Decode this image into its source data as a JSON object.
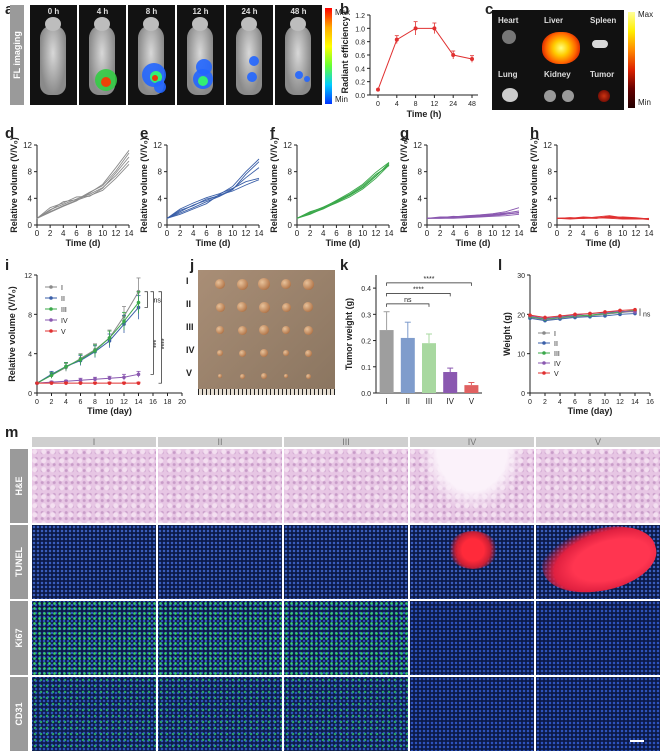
{
  "panel_labels": {
    "a": "a",
    "b": "b",
    "c": "c",
    "d": "d",
    "e": "e",
    "f": "f",
    "g": "g",
    "h": "h",
    "i": "i",
    "j": "j",
    "k": "k",
    "l": "l",
    "m": "m"
  },
  "panel_a": {
    "row_label": "FL imaging",
    "timepoints": [
      "0 h",
      "4 h",
      "8 h",
      "12 h",
      "24 h",
      "48 h"
    ],
    "colorbar_max": "Max",
    "colorbar_min": "Min"
  },
  "panel_c": {
    "organs": [
      "Heart",
      "Liver",
      "Spleen",
      "Lung",
      "Kidney",
      "Tumor"
    ],
    "colorbar_max": "Max",
    "colorbar_min": "Min"
  },
  "panel_j": {
    "groups": [
      "I",
      "II",
      "III",
      "IV",
      "V"
    ]
  },
  "panel_m": {
    "columns": [
      "I",
      "II",
      "III",
      "IV",
      "V"
    ],
    "rows": [
      "H&E",
      "TUNEL",
      "Ki67",
      "CD31"
    ]
  },
  "chart_data": [
    {
      "id": "b",
      "type": "line",
      "title": "",
      "xlabel": "Time (h)",
      "ylabel": "Radiant efficiency",
      "x": [
        0,
        4,
        8,
        12,
        24,
        48
      ],
      "x_display": [
        0,
        4,
        8,
        12,
        24,
        48
      ],
      "values": [
        0.08,
        0.83,
        1.0,
        1.0,
        0.6,
        0.54
      ],
      "errors": [
        0,
        0.06,
        0.1,
        0.08,
        0.06,
        0.05
      ],
      "ylim": [
        0,
        1.2
      ],
      "yticks": [
        "0.0",
        "0.2",
        "0.4",
        "0.6",
        "0.8",
        "1.0",
        "1.2"
      ],
      "color": "#e03030"
    },
    {
      "id": "d",
      "type": "line",
      "xlabel": "Time (d)",
      "ylabel": "Relative volume (V/V₀)",
      "xlim": [
        0,
        14
      ],
      "ylim": [
        0,
        12
      ],
      "xticks": [
        "0",
        "2",
        "4",
        "6",
        "8",
        "10",
        "12",
        "14"
      ],
      "yticks": [
        "0",
        "4",
        "8",
        "12"
      ],
      "color": "#8a8a8a",
      "x": [
        0,
        2,
        4,
        6,
        8,
        10,
        12,
        14
      ],
      "series": [
        {
          "values": [
            1,
            2.3,
            3.1,
            3.9,
            4.6,
            5.6,
            7.4,
            9.6
          ]
        },
        {
          "values": [
            1,
            1.9,
            2.8,
            3.6,
            4.8,
            6.1,
            8.6,
            11.2
          ]
        },
        {
          "values": [
            1,
            2.6,
            3.3,
            4.2,
            4.3,
            5.5,
            7.8,
            10.2
          ]
        },
        {
          "values": [
            1,
            2.0,
            2.9,
            3.7,
            4.4,
            5.2,
            7.0,
            9.1
          ]
        },
        {
          "values": [
            1,
            2.2,
            3.5,
            3.8,
            4.9,
            5.9,
            8.1,
            10.8
          ]
        }
      ]
    },
    {
      "id": "e",
      "type": "line",
      "xlabel": "Time (d)",
      "ylabel": "Relative volume (V/V₀)",
      "xlim": [
        0,
        14
      ],
      "ylim": [
        0,
        12
      ],
      "xticks": [
        "0",
        "2",
        "4",
        "6",
        "8",
        "10",
        "12",
        "14"
      ],
      "yticks": [
        "0",
        "4",
        "8",
        "12"
      ],
      "color": "#3a5fa8",
      "x": [
        0,
        2,
        4,
        6,
        8,
        10,
        12,
        14
      ],
      "series": [
        {
          "values": [
            1,
            1.8,
            2.6,
            3.5,
            4.3,
            5.3,
            7.6,
            9.5
          ]
        },
        {
          "values": [
            1,
            2.4,
            3.3,
            4.1,
            4.7,
            5.5,
            6.5,
            7.0
          ]
        },
        {
          "values": [
            1,
            1.6,
            2.4,
            3.2,
            4.6,
            5.8,
            8.0,
            9.9
          ]
        },
        {
          "values": [
            1,
            2.0,
            3.0,
            3.7,
            4.5,
            5.1,
            6.0,
            6.8
          ]
        },
        {
          "values": [
            1,
            2.2,
            2.9,
            3.9,
            4.4,
            5.4,
            7.1,
            8.6
          ]
        }
      ]
    },
    {
      "id": "f",
      "type": "line",
      "xlabel": "Time (d)",
      "ylabel": "Relative volume (V/V₀)",
      "xlim": [
        0,
        14
      ],
      "ylim": [
        0,
        12
      ],
      "xticks": [
        "0",
        "2",
        "4",
        "6",
        "8",
        "10",
        "12",
        "14"
      ],
      "yticks": [
        "0",
        "4",
        "8",
        "12"
      ],
      "color": "#3aa84a",
      "x": [
        0,
        2,
        4,
        6,
        8,
        10,
        12,
        14
      ],
      "series": [
        {
          "values": [
            1,
            1.7,
            2.4,
            3.4,
            4.4,
            5.6,
            7.3,
            9.3
          ]
        },
        {
          "values": [
            1,
            1.9,
            2.7,
            3.6,
            4.6,
            5.9,
            7.6,
            8.9
          ]
        },
        {
          "values": [
            1,
            1.6,
            2.5,
            3.3,
            4.2,
            5.4,
            7.0,
            9.0
          ]
        },
        {
          "values": [
            1,
            2.0,
            2.6,
            3.7,
            4.8,
            6.1,
            7.9,
            9.4
          ]
        },
        {
          "values": [
            1,
            1.8,
            2.5,
            3.5,
            4.5,
            5.7,
            7.4,
            9.1
          ]
        }
      ]
    },
    {
      "id": "g",
      "type": "line",
      "xlabel": "Time (d)",
      "ylabel": "Relative volume (V/V₀)",
      "xlim": [
        0,
        14
      ],
      "ylim": [
        0,
        12
      ],
      "xticks": [
        "0",
        "2",
        "4",
        "6",
        "8",
        "10",
        "12",
        "14"
      ],
      "yticks": [
        "0",
        "4",
        "8",
        "12"
      ],
      "color": "#8a58b0",
      "x": [
        0,
        2,
        4,
        6,
        8,
        10,
        12,
        14
      ],
      "series": [
        {
          "values": [
            1,
            1.1,
            1.2,
            1.3,
            1.5,
            1.7,
            2.0,
            2.6
          ]
        },
        {
          "values": [
            1,
            1.0,
            1.1,
            1.2,
            1.3,
            1.4,
            1.6,
            1.9
          ]
        },
        {
          "values": [
            1,
            1.2,
            1.2,
            1.4,
            1.5,
            1.6,
            1.8,
            2.1
          ]
        },
        {
          "values": [
            1,
            1.0,
            1.0,
            1.1,
            1.2,
            1.3,
            1.4,
            1.6
          ]
        },
        {
          "values": [
            1,
            1.1,
            1.3,
            1.2,
            1.4,
            1.5,
            1.7,
            1.8
          ]
        }
      ]
    },
    {
      "id": "h",
      "type": "line",
      "xlabel": "Time (d)",
      "ylabel": "Relative volume (V/V₀)",
      "xlim": [
        0,
        14
      ],
      "ylim": [
        0,
        12
      ],
      "xticks": [
        "0",
        "2",
        "4",
        "6",
        "8",
        "10",
        "12",
        "14"
      ],
      "yticks": [
        "0",
        "4",
        "8",
        "12"
      ],
      "color": "#e03030",
      "x": [
        0,
        2,
        4,
        6,
        8,
        10,
        12,
        14
      ],
      "series": [
        {
          "values": [
            1,
            1.0,
            1.1,
            1.0,
            1.2,
            1.0,
            1.0,
            0.9
          ]
        },
        {
          "values": [
            1,
            1.1,
            1.0,
            1.2,
            1.4,
            1.1,
            1.0,
            0.8
          ]
        },
        {
          "values": [
            1,
            0.9,
            1.0,
            1.1,
            1.0,
            0.9,
            0.9,
            1.0
          ]
        },
        {
          "values": [
            1,
            1.0,
            1.2,
            1.1,
            1.1,
            1.2,
            1.1,
            0.9
          ]
        },
        {
          "values": [
            1,
            1.1,
            1.0,
            1.0,
            1.3,
            1.0,
            0.9,
            0.9
          ]
        }
      ]
    },
    {
      "id": "i",
      "type": "line",
      "xlabel": "Time (day)",
      "ylabel": "Relative volume (V/V₀)",
      "xlim": [
        0,
        20
      ],
      "ylim": [
        0,
        12
      ],
      "xticks": [
        "0",
        "2",
        "4",
        "6",
        "8",
        "10",
        "12",
        "14",
        "16",
        "18",
        "20"
      ],
      "yticks": [
        "0",
        "4",
        "8",
        "12"
      ],
      "x": [
        0,
        2,
        4,
        6,
        8,
        10,
        12,
        14
      ],
      "legend": [
        "I",
        "II",
        "III",
        "IV",
        "V"
      ],
      "legend_position": "top-left",
      "annotations": [
        "ns",
        "***",
        "****"
      ],
      "series": [
        {
          "name": "I",
          "color": "#8a8a8a",
          "values": [
            1,
            1.8,
            2.6,
            3.5,
            4.4,
            5.6,
            7.8,
            10.3
          ],
          "errors": [
            0,
            0.3,
            0.4,
            0.5,
            0.6,
            0.8,
            1.0,
            1.4
          ]
        },
        {
          "name": "II",
          "color": "#3a5fa8",
          "values": [
            1,
            1.9,
            2.7,
            3.3,
            4.2,
            5.3,
            7.0,
            8.7
          ],
          "errors": [
            0,
            0.3,
            0.4,
            0.5,
            0.6,
            0.7,
            0.9,
            1.2
          ]
        },
        {
          "name": "III",
          "color": "#3aa84a",
          "values": [
            1,
            1.8,
            2.7,
            3.4,
            4.3,
            5.6,
            7.3,
            9.2
          ],
          "errors": [
            0,
            0.3,
            0.4,
            0.5,
            0.6,
            0.7,
            0.9,
            1.1
          ]
        },
        {
          "name": "IV",
          "color": "#8a58b0",
          "values": [
            1,
            1.1,
            1.2,
            1.3,
            1.4,
            1.5,
            1.6,
            1.9
          ],
          "errors": [
            0,
            0.1,
            0.1,
            0.2,
            0.2,
            0.2,
            0.3,
            0.3
          ]
        },
        {
          "name": "V",
          "color": "#e03030",
          "values": [
            1,
            1.0,
            1.0,
            1.0,
            1.0,
            1.0,
            1.0,
            1.0
          ],
          "errors": [
            0,
            0.1,
            0.1,
            0.1,
            0.1,
            0.1,
            0.1,
            0.1
          ]
        }
      ]
    },
    {
      "id": "k",
      "type": "bar",
      "xlabel": "",
      "ylabel": "Tumor weight (g)",
      "categories": [
        "I",
        "II",
        "III",
        "IV",
        "V"
      ],
      "values": [
        0.24,
        0.21,
        0.19,
        0.08,
        0.03
      ],
      "errors": [
        0.07,
        0.06,
        0.035,
        0.015,
        0.01
      ],
      "colors": [
        "#9e9e9e",
        "#7f9ccc",
        "#a8d8a0",
        "#8a58b0",
        "#e06060"
      ],
      "ylim": [
        0,
        0.45
      ],
      "yticks": [
        "0.0",
        "0.1",
        "0.2",
        "0.3",
        "0.4"
      ],
      "annotations": [
        "ns",
        "****",
        "****"
      ]
    },
    {
      "id": "l",
      "type": "line",
      "xlabel": "Time (day)",
      "ylabel": "Weight (g)",
      "xlim": [
        0,
        16
      ],
      "ylim": [
        0,
        30
      ],
      "xticks": [
        "0",
        "2",
        "4",
        "6",
        "8",
        "10",
        "12",
        "14",
        "16"
      ],
      "yticks": [
        "0",
        "10",
        "20",
        "30"
      ],
      "x": [
        0,
        2,
        4,
        6,
        8,
        10,
        12,
        14
      ],
      "legend": [
        "I",
        "II",
        "III",
        "IV",
        "V"
      ],
      "legend_position": "bottom-left",
      "annotations": [
        "ns"
      ],
      "series": [
        {
          "name": "I",
          "color": "#8a8a8a",
          "values": [
            19.2,
            18.6,
            19.0,
            19.4,
            19.6,
            20.0,
            20.4,
            20.8
          ]
        },
        {
          "name": "II",
          "color": "#3a5fa8",
          "values": [
            19.0,
            18.4,
            18.8,
            19.2,
            19.4,
            19.6,
            20.0,
            20.2
          ]
        },
        {
          "name": "III",
          "color": "#3aa84a",
          "values": [
            19.4,
            18.8,
            19.2,
            19.6,
            19.8,
            20.2,
            20.6,
            21.0
          ]
        },
        {
          "name": "IV",
          "color": "#8a58b0",
          "values": [
            19.6,
            19.0,
            19.4,
            19.8,
            20.2,
            20.4,
            20.8,
            20.6
          ]
        },
        {
          "name": "V",
          "color": "#e03030",
          "values": [
            19.8,
            19.2,
            19.6,
            20.0,
            20.2,
            20.6,
            21.0,
            21.2
          ]
        }
      ]
    }
  ]
}
